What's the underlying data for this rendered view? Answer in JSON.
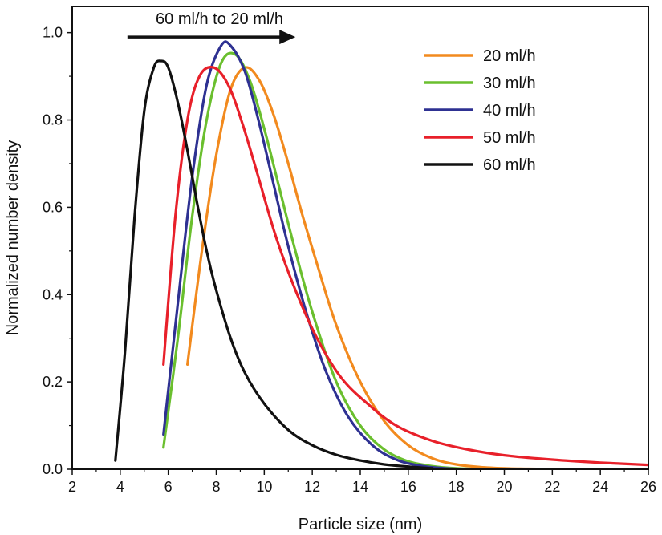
{
  "chart_data": {
    "type": "line",
    "title": "",
    "xlabel": "Particle size (nm)",
    "ylabel": "Normalized number density",
    "xlim": [
      2,
      26
    ],
    "ylim": [
      0,
      1.06
    ],
    "xticks": [
      2,
      4,
      6,
      8,
      10,
      12,
      14,
      16,
      18,
      20,
      22,
      24,
      26
    ],
    "yticks": [
      0.0,
      0.2,
      0.4,
      0.6,
      0.8,
      1.0
    ],
    "ytick_labels": [
      "0.0",
      "0.2",
      "0.4",
      "0.6",
      "0.8",
      "1.0"
    ],
    "grid": false,
    "legend_position": "top-right",
    "annotation": {
      "text": "60 ml/h to 20 ml/h",
      "arrow_from_x": 4.3,
      "arrow_to_x": 11.3,
      "y": 0.99
    },
    "series": [
      {
        "name": "20 ml/h",
        "color": "#f28a1e",
        "x": [
          6.8,
          7.4,
          8.0,
          8.6,
          9.2,
          9.8,
          10.4,
          11.0,
          11.6,
          12.2,
          13.0,
          14.0,
          15.0,
          16.0,
          17.0,
          18.0,
          19.0,
          20.0,
          21.0,
          22.0
        ],
        "y": [
          0.24,
          0.5,
          0.72,
          0.87,
          0.92,
          0.89,
          0.81,
          0.7,
          0.58,
          0.47,
          0.33,
          0.2,
          0.11,
          0.055,
          0.025,
          0.011,
          0.005,
          0.002,
          0.001,
          0.0
        ]
      },
      {
        "name": "30 ml/h",
        "color": "#6abf2e",
        "x": [
          5.8,
          6.4,
          7.0,
          7.6,
          8.2,
          8.8,
          9.4,
          10.0,
          10.6,
          11.2,
          12.0,
          13.0,
          14.0,
          15.0,
          16.0,
          17.0,
          18.0,
          19.0
        ],
        "y": [
          0.05,
          0.3,
          0.58,
          0.8,
          0.93,
          0.95,
          0.89,
          0.78,
          0.65,
          0.52,
          0.36,
          0.2,
          0.1,
          0.045,
          0.018,
          0.007,
          0.002,
          0.0
        ]
      },
      {
        "name": "40 ml/h",
        "color": "#2e3192",
        "x": [
          5.8,
          6.4,
          7.0,
          7.6,
          8.2,
          8.6,
          9.2,
          9.8,
          10.4,
          11.0,
          11.8,
          12.6,
          13.5,
          14.5,
          15.5,
          16.5,
          17.5,
          18.5
        ],
        "y": [
          0.08,
          0.38,
          0.67,
          0.88,
          0.97,
          0.97,
          0.91,
          0.79,
          0.65,
          0.51,
          0.35,
          0.22,
          0.12,
          0.055,
          0.022,
          0.008,
          0.002,
          0.0
        ]
      },
      {
        "name": "50 ml/h",
        "color": "#e8202a",
        "x": [
          5.8,
          6.3,
          6.8,
          7.3,
          7.9,
          8.5,
          9.1,
          9.8,
          10.5,
          11.3,
          12.2,
          13.2,
          14.3,
          15.5,
          17.0,
          18.5,
          20.0,
          22.0,
          24.0,
          26.0
        ],
        "y": [
          0.24,
          0.58,
          0.8,
          0.9,
          0.92,
          0.88,
          0.79,
          0.66,
          0.53,
          0.41,
          0.3,
          0.21,
          0.15,
          0.1,
          0.065,
          0.045,
          0.032,
          0.022,
          0.015,
          0.01
        ]
      },
      {
        "name": "60 ml/h",
        "color": "#111111",
        "x": [
          3.8,
          4.2,
          4.6,
          5.0,
          5.4,
          5.7,
          6.0,
          6.4,
          6.8,
          7.2,
          7.6,
          8.0,
          8.6,
          9.2,
          10.0,
          11.0,
          12.0,
          13.0,
          14.0,
          15.0,
          16.0,
          17.0
        ],
        "y": [
          0.02,
          0.27,
          0.58,
          0.82,
          0.92,
          0.935,
          0.92,
          0.84,
          0.73,
          0.61,
          0.5,
          0.41,
          0.3,
          0.22,
          0.15,
          0.09,
          0.055,
          0.033,
          0.02,
          0.011,
          0.006,
          0.002
        ]
      }
    ]
  }
}
